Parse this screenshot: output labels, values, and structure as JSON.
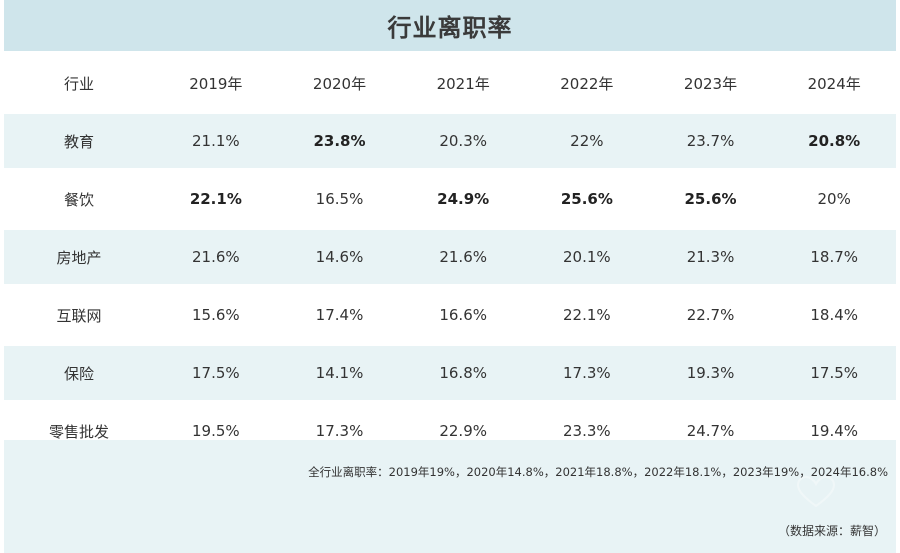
{
  "title": "行业离职率",
  "chart_data": {
    "type": "table",
    "columns": [
      "行业",
      "2019年",
      "2020年",
      "2021年",
      "2022年",
      "2023年",
      "2024年"
    ],
    "rows": [
      {
        "industry": "教育",
        "values": [
          "21.1%",
          "23.8%",
          "20.3%",
          "22%",
          "23.7%",
          "20.8%"
        ],
        "bold": [
          false,
          true,
          false,
          false,
          false,
          true
        ]
      },
      {
        "industry": "餐饮",
        "values": [
          "22.1%",
          "16.5%",
          "24.9%",
          "25.6%",
          "25.6%",
          "20%"
        ],
        "bold": [
          true,
          false,
          true,
          true,
          true,
          false
        ]
      },
      {
        "industry": "房地产",
        "values": [
          "21.6%",
          "14.6%",
          "21.6%",
          "20.1%",
          "21.3%",
          "18.7%"
        ],
        "bold": [
          false,
          false,
          false,
          false,
          false,
          false
        ]
      },
      {
        "industry": "互联网",
        "values": [
          "15.6%",
          "17.4%",
          "16.6%",
          "22.1%",
          "22.7%",
          "18.4%"
        ],
        "bold": [
          false,
          false,
          false,
          false,
          false,
          false
        ]
      },
      {
        "industry": "保险",
        "values": [
          "17.5%",
          "14.1%",
          "16.8%",
          "17.3%",
          "19.3%",
          "17.5%"
        ],
        "bold": [
          false,
          false,
          false,
          false,
          false,
          false
        ]
      },
      {
        "industry": "零售批发",
        "values": [
          "19.5%",
          "17.3%",
          "22.9%",
          "23.3%",
          "24.7%",
          "19.4%"
        ],
        "bold": [
          false,
          false,
          false,
          false,
          false,
          false
        ]
      }
    ]
  },
  "summary": "全行业离职率：2019年19%，2020年14.8%，2021年18.8%，2022年18.1%，2023年19%，2024年16.8%",
  "source": "（数据来源：薪智）",
  "colors": {
    "header_band": "#cfe5eb",
    "row_band": "#e8f3f5"
  }
}
